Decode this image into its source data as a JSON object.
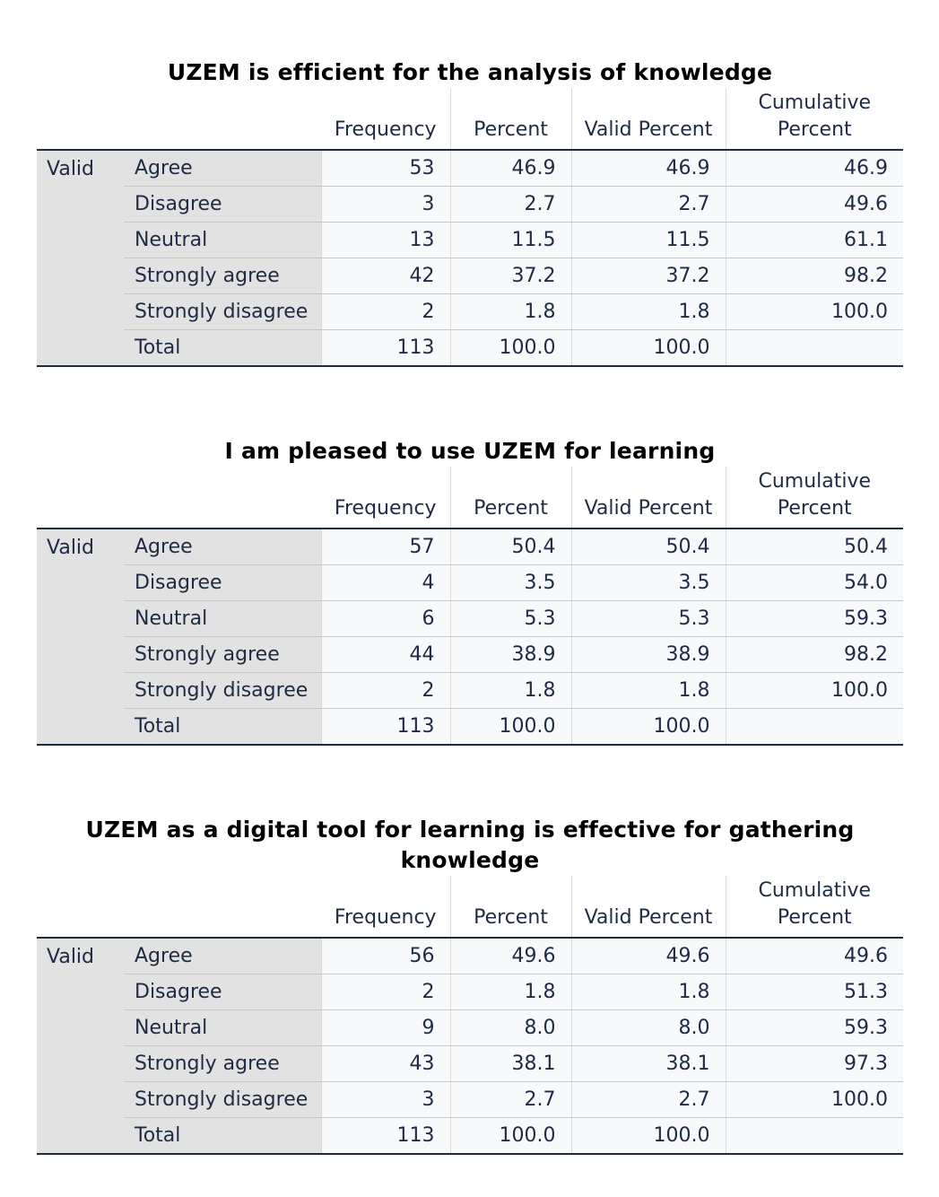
{
  "columns": {
    "frequency": "Frequency",
    "percent": "Percent",
    "valid_percent": "Valid Percent",
    "cumulative_line1": "Cumulative",
    "cumulative_line2": "Percent"
  },
  "tables": [
    {
      "title": "UZEM is efficient for the analysis of knowledge",
      "group_label": "Valid",
      "rows": [
        {
          "label": "Agree",
          "frequency": "53",
          "percent": "46.9",
          "valid_percent": "46.9",
          "cumulative_percent": "46.9"
        },
        {
          "label": "Disagree",
          "frequency": "3",
          "percent": "2.7",
          "valid_percent": "2.7",
          "cumulative_percent": "49.6"
        },
        {
          "label": "Neutral",
          "frequency": "13",
          "percent": "11.5",
          "valid_percent": "11.5",
          "cumulative_percent": "61.1"
        },
        {
          "label": "Strongly agree",
          "frequency": "42",
          "percent": "37.2",
          "valid_percent": "37.2",
          "cumulative_percent": "98.2"
        },
        {
          "label": "Strongly disagree",
          "frequency": "2",
          "percent": "1.8",
          "valid_percent": "1.8",
          "cumulative_percent": "100.0"
        },
        {
          "label": "Total",
          "frequency": "113",
          "percent": "100.0",
          "valid_percent": "100.0",
          "cumulative_percent": ""
        }
      ]
    },
    {
      "title": "I am pleased to use UZEM for learning",
      "group_label": "Valid",
      "rows": [
        {
          "label": "Agree",
          "frequency": "57",
          "percent": "50.4",
          "valid_percent": "50.4",
          "cumulative_percent": "50.4"
        },
        {
          "label": "Disagree",
          "frequency": "4",
          "percent": "3.5",
          "valid_percent": "3.5",
          "cumulative_percent": "54.0"
        },
        {
          "label": "Neutral",
          "frequency": "6",
          "percent": "5.3",
          "valid_percent": "5.3",
          "cumulative_percent": "59.3"
        },
        {
          "label": "Strongly agree",
          "frequency": "44",
          "percent": "38.9",
          "valid_percent": "38.9",
          "cumulative_percent": "98.2"
        },
        {
          "label": "Strongly disagree",
          "frequency": "2",
          "percent": "1.8",
          "valid_percent": "1.8",
          "cumulative_percent": "100.0"
        },
        {
          "label": "Total",
          "frequency": "113",
          "percent": "100.0",
          "valid_percent": "100.0",
          "cumulative_percent": ""
        }
      ]
    },
    {
      "title": "UZEM as a digital tool for learning is effective for gathering knowledge",
      "group_label": "Valid",
      "rows": [
        {
          "label": "Agree",
          "frequency": "56",
          "percent": "49.6",
          "valid_percent": "49.6",
          "cumulative_percent": "49.6"
        },
        {
          "label": "Disagree",
          "frequency": "2",
          "percent": "1.8",
          "valid_percent": "1.8",
          "cumulative_percent": "51.3"
        },
        {
          "label": "Neutral",
          "frequency": "9",
          "percent": "8.0",
          "valid_percent": "8.0",
          "cumulative_percent": "59.3"
        },
        {
          "label": "Strongly agree",
          "frequency": "43",
          "percent": "38.1",
          "valid_percent": "38.1",
          "cumulative_percent": "97.3"
        },
        {
          "label": "Strongly disagree",
          "frequency": "3",
          "percent": "2.7",
          "valid_percent": "2.7",
          "cumulative_percent": "100.0"
        },
        {
          "label": "Total",
          "frequency": "113",
          "percent": "100.0",
          "valid_percent": "100.0",
          "cumulative_percent": ""
        }
      ]
    }
  ]
}
